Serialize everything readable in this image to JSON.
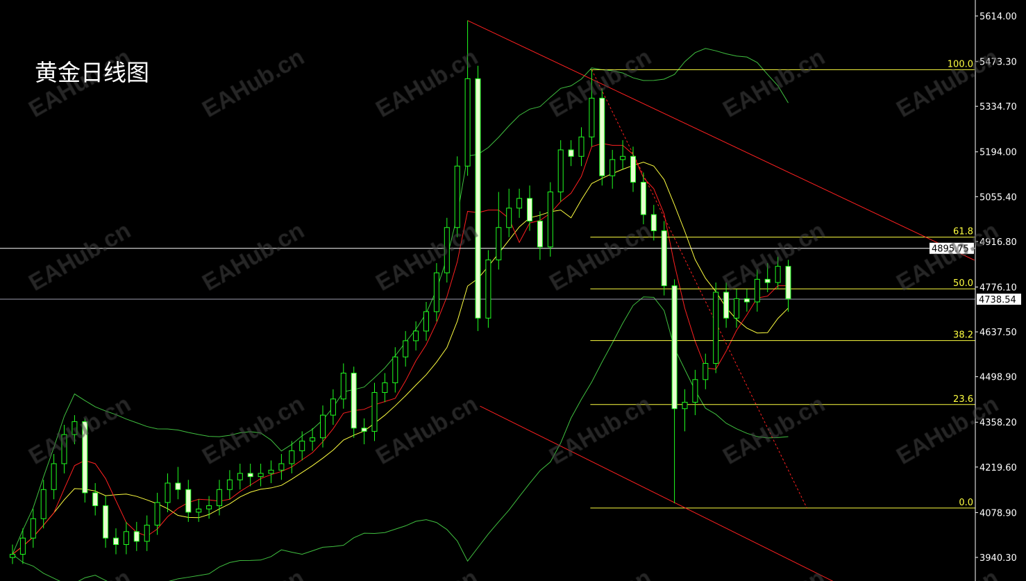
{
  "title": "黄金日线图",
  "watermark": "EAHub.cn",
  "chart_data": {
    "type": "candlestick",
    "title": "黄金日线图",
    "ylim": [
      3870,
      5680
    ],
    "y_ticks": [
      "5614.00",
      "5473.30",
      "5334.70",
      "5194.00",
      "5055.40",
      "4916.80",
      "4776.10",
      "4637.50",
      "4498.90",
      "4358.20",
      "4219.60",
      "4078.90",
      "3940.30"
    ],
    "y_tick_values": [
      5614.0,
      5473.3,
      5334.7,
      5194.0,
      5055.4,
      4916.8,
      4776.1,
      4637.5,
      4498.9,
      4358.2,
      4219.6,
      4078.9,
      3940.3
    ],
    "open": [
      3940,
      3950,
      4000,
      4060,
      4150,
      4230,
      4320,
      4360,
      4140,
      4100,
      4000,
      3980,
      4020,
      3990,
      4040,
      4110,
      4170,
      4150,
      4080,
      4090,
      4100,
      4150,
      4180,
      4200,
      4190,
      4200,
      4210,
      4230,
      4270,
      4300,
      4310,
      4380,
      4430,
      4510,
      4340,
      4330,
      4450,
      4480,
      4560,
      4610,
      4640,
      4700,
      4820,
      4960,
      5150,
      5420,
      4680,
      4860,
      4960,
      5020,
      5050,
      4980,
      4900,
      5070,
      5200,
      5180,
      5240,
      5360,
      5120,
      5170,
      5180,
      5100,
      5000,
      4950,
      4780,
      4400,
      4420,
      4490,
      4540,
      4760,
      4680,
      4740,
      4730,
      4800,
      4790,
      4840
    ],
    "high": [
      3980,
      4030,
      4090,
      4180,
      4260,
      4350,
      4380,
      4370,
      4170,
      4130,
      4030,
      4050,
      4050,
      4070,
      4140,
      4200,
      4220,
      4180,
      4120,
      4130,
      4180,
      4210,
      4230,
      4230,
      4230,
      4240,
      4260,
      4300,
      4330,
      4340,
      4410,
      4460,
      4540,
      4530,
      4370,
      4480,
      4510,
      4590,
      4640,
      4670,
      4730,
      4850,
      4990,
      5180,
      5600,
      5460,
      4890,
      5070,
      5080,
      5080,
      5090,
      5010,
      5100,
      5230,
      5230,
      5270,
      5448,
      5390,
      5200,
      5230,
      5210,
      5130,
      5030,
      4980,
      4800,
      4460,
      4520,
      4570,
      4790,
      4790,
      4770,
      4770,
      4830,
      4850,
      4870,
      4860
    ],
    "low": [
      3920,
      3920,
      3970,
      4030,
      4120,
      4200,
      4290,
      4110,
      4070,
      3970,
      3950,
      3950,
      3960,
      3960,
      4010,
      4080,
      4120,
      4050,
      4050,
      4060,
      4070,
      4120,
      4150,
      4160,
      4160,
      4170,
      4180,
      4200,
      4240,
      4270,
      4280,
      4350,
      4400,
      4310,
      4290,
      4300,
      4420,
      4450,
      4530,
      4580,
      4610,
      4670,
      4790,
      4930,
      5120,
      4640,
      4650,
      4830,
      4930,
      4990,
      4950,
      4860,
      4870,
      5040,
      5150,
      5150,
      5210,
      5090,
      5080,
      5140,
      5070,
      4970,
      4920,
      4750,
      4108,
      4330,
      4380,
      4460,
      4510,
      4650,
      4650,
      4700,
      4700,
      4760,
      4770,
      4700
    ],
    "close": [
      3950,
      4000,
      4060,
      4150,
      4230,
      4320,
      4360,
      4140,
      4100,
      4000,
      3980,
      4020,
      3990,
      4040,
      4110,
      4170,
      4150,
      4080,
      4090,
      4100,
      4150,
      4180,
      4200,
      4190,
      4200,
      4210,
      4230,
      4270,
      4300,
      4310,
      4380,
      4430,
      4510,
      4340,
      4330,
      4450,
      4480,
      4560,
      4610,
      4640,
      4700,
      4820,
      4960,
      5150,
      5420,
      4680,
      4860,
      4960,
      5020,
      5050,
      4980,
      4900,
      5070,
      5200,
      5180,
      5240,
      5360,
      5120,
      5170,
      5180,
      5100,
      5000,
      4950,
      4780,
      4400,
      4420,
      4490,
      4540,
      4760,
      4680,
      4740,
      4730,
      4800,
      4790,
      4840,
      4740
    ],
    "indicators": {
      "ma_fast_color": "#ff2020",
      "ma_slow_color": "#ffff40",
      "bollinger_color": "#40c040"
    },
    "fibonacci": {
      "high": 5448,
      "low": 4093,
      "levels": [
        {
          "label": "100.0",
          "ratio": 1.0
        },
        {
          "label": "61.8",
          "ratio": 0.618
        },
        {
          "label": "50.0",
          "ratio": 0.5
        },
        {
          "label": "38.2",
          "ratio": 0.382
        },
        {
          "label": "23.6",
          "ratio": 0.236
        },
        {
          "label": "0.0",
          "ratio": 0.0
        }
      ],
      "start_bar": 56,
      "color": "#ffff40"
    },
    "trendlines": [
      {
        "from": {
          "bar": 44,
          "price": 5600
        },
        "to": {
          "bar": 93,
          "price": 4859
        },
        "style": "solid",
        "color": "#ff2020"
      },
      {
        "from": {
          "bar": 45.2,
          "price": 4408
        },
        "to": {
          "bar": 79.3,
          "price": 3867
        },
        "style": "solid",
        "color": "#ff2020"
      },
      {
        "from": {
          "bar": 56,
          "price": 5448
        },
        "to": {
          "bar": 76.8,
          "price": 4093
        },
        "style": "dotted",
        "color": "#ff2020"
      }
    ],
    "price_lines": [
      {
        "label": "4895.75",
        "price": 4895.75,
        "color": "#ffffff"
      },
      {
        "label": "4738.54",
        "price": 4738.54,
        "color": "#a0a0b0"
      }
    ],
    "colors": {
      "background": "#000000",
      "bull": "#20ff20",
      "bear_fill": "#e8ffd0",
      "axis": "#ffffff"
    }
  }
}
